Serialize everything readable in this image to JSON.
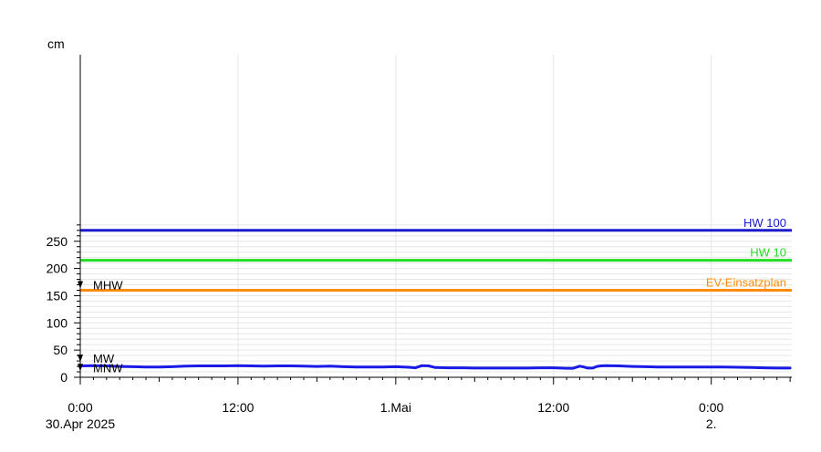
{
  "chart_data": {
    "type": "line",
    "ylabel": "cm",
    "ylim": [
      0,
      280
    ],
    "y_ticks": [
      0,
      50,
      100,
      150,
      200,
      250
    ],
    "y_tick_labels": [
      "0",
      "50",
      "100",
      "150",
      "200",
      "250"
    ],
    "x_range_hours": [
      0,
      45
    ],
    "x_ticks": [
      {
        "hour": 0,
        "line1": "0:00",
        "line2": "30.Apr 2025"
      },
      {
        "hour": 12,
        "line1": "12:00",
        "line2": ""
      },
      {
        "hour": 24,
        "line1": "1.Mai",
        "line2": ""
      },
      {
        "hour": 36,
        "line1": "12:00",
        "line2": ""
      },
      {
        "hour": 48,
        "line1": "0:00",
        "line2": "2."
      }
    ],
    "grid": true,
    "colors": {
      "hw100": "#1a1acc",
      "hw10": "#22dd22",
      "ev": "#ff8c00",
      "series": "#1a1ae6",
      "grid": "#e6e6e6",
      "axis": "#000000"
    },
    "thresholds": [
      {
        "name": "HW 100",
        "value": 270,
        "color": "#1a1acc"
      },
      {
        "name": "HW 10",
        "value": 215,
        "color": "#22dd22"
      },
      {
        "name": "EV-Einsatzplan",
        "value": 160,
        "color": "#ff8c00"
      }
    ],
    "markers": [
      {
        "name": "MHW",
        "value": 170
      },
      {
        "name": "MW",
        "value": 35
      },
      {
        "name": "MNW",
        "value": 18
      }
    ],
    "series": [
      {
        "values": [
          [
            0,
            21
          ],
          [
            1,
            21.5
          ],
          [
            2,
            21
          ],
          [
            3,
            20
          ],
          [
            4,
            19.5
          ],
          [
            5,
            19
          ],
          [
            6,
            19
          ],
          [
            7,
            19.5
          ],
          [
            8,
            20.5
          ],
          [
            9,
            21
          ],
          [
            10,
            21
          ],
          [
            11,
            21
          ],
          [
            12,
            21.5
          ],
          [
            13,
            21
          ],
          [
            14,
            20.5
          ],
          [
            15,
            21
          ],
          [
            16,
            21
          ],
          [
            17,
            20.5
          ],
          [
            18,
            20
          ],
          [
            19,
            20.5
          ],
          [
            20,
            19.5
          ],
          [
            21,
            19
          ],
          [
            22,
            19
          ],
          [
            23,
            19
          ],
          [
            24,
            19.5
          ],
          [
            25,
            18.5
          ],
          [
            25.5,
            17.5
          ],
          [
            26,
            21.5
          ],
          [
            26.5,
            21
          ],
          [
            27,
            18
          ],
          [
            28,
            17.5
          ],
          [
            29,
            17.5
          ],
          [
            30,
            17
          ],
          [
            31,
            17
          ],
          [
            32,
            17
          ],
          [
            33,
            17
          ],
          [
            34,
            17
          ],
          [
            35,
            17.5
          ],
          [
            36,
            17.5
          ],
          [
            37,
            16.5
          ],
          [
            37.5,
            16.5
          ],
          [
            38,
            20.5
          ],
          [
            38.3,
            19
          ],
          [
            38.6,
            17
          ],
          [
            39,
            17
          ],
          [
            39.3,
            20
          ],
          [
            39.6,
            21
          ],
          [
            40,
            21.5
          ],
          [
            41,
            21
          ],
          [
            42,
            20
          ],
          [
            43,
            19.5
          ],
          [
            44,
            19
          ],
          [
            45,
            19
          ],
          [
            46,
            19
          ],
          [
            47,
            19
          ],
          [
            48,
            19
          ],
          [
            49,
            19
          ],
          [
            50,
            18.5
          ],
          [
            51,
            18
          ],
          [
            52,
            17.5
          ],
          [
            53,
            17
          ],
          [
            54,
            17
          ]
        ],
        "color": "#1a1ae6"
      }
    ]
  }
}
